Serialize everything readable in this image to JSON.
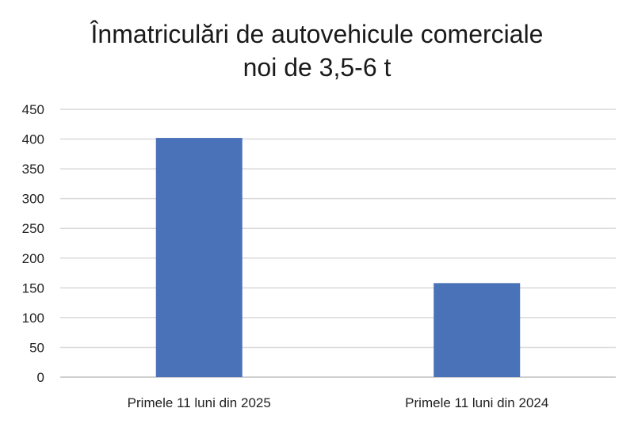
{
  "chart_data": {
    "type": "bar",
    "title_lines": [
      "Înmatriculări de autovehicule comerciale",
      "noi de 3,5-6 t"
    ],
    "categories": [
      "Primele 11 luni din 2025",
      "Primele 11 luni din 2024"
    ],
    "values": [
      402,
      158
    ],
    "xlabel": "",
    "ylabel": "",
    "ylim": [
      0,
      450
    ],
    "yticks": [
      0,
      50,
      100,
      150,
      200,
      250,
      300,
      350,
      400,
      450
    ],
    "grid": true,
    "legend": "none",
    "bar_color": "#4a72b8",
    "grid_color": "#d9d9d9"
  }
}
